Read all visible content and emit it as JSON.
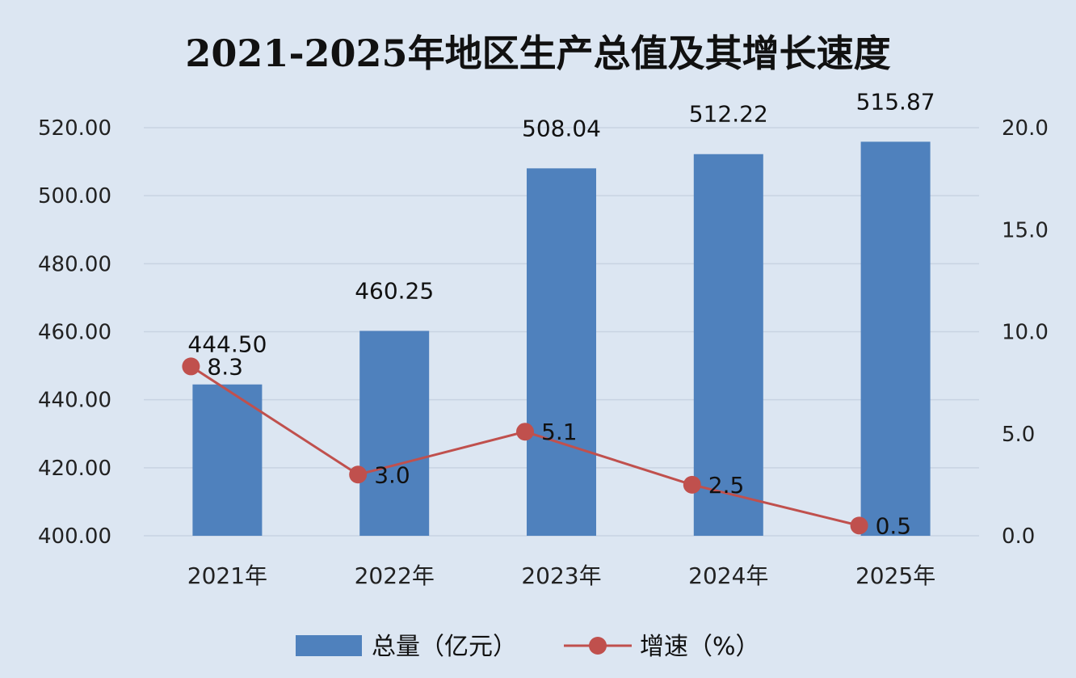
{
  "chart_data": {
    "type": "bar",
    "title": "2021-2025年地区生产总值及其增长速度",
    "categories": [
      "2021年",
      "2022年",
      "2023年",
      "2024年",
      "2025年"
    ],
    "series": [
      {
        "name": "总量（亿元）",
        "type": "bar",
        "axis": "left",
        "values": [
          444.5,
          460.25,
          508.04,
          512.22,
          515.87
        ],
        "labels": [
          "444.50",
          "460.25",
          "508.04",
          "512.22",
          "515.87"
        ],
        "color": "#4f81bd"
      },
      {
        "name": "增速（%）",
        "type": "line",
        "axis": "right",
        "values": [
          8.3,
          3.0,
          5.1,
          2.5,
          0.5
        ],
        "labels": [
          "8.3",
          "3.0",
          "5.1",
          "2.5",
          "0.5"
        ],
        "color": "#c0504d"
      }
    ],
    "y_left": {
      "min": 400,
      "max": 520,
      "ticks": [
        400,
        420,
        440,
        460,
        480,
        500,
        520
      ],
      "tick_labels": [
        "400.00",
        "420.00",
        "440.00",
        "460.00",
        "480.00",
        "500.00",
        "520.00"
      ]
    },
    "y_right": {
      "min": 0,
      "max": 20,
      "ticks": [
        0,
        5,
        10,
        15,
        20
      ],
      "tick_labels": [
        "0.0",
        "5.0",
        "10.0",
        "15.0",
        "20.0"
      ]
    },
    "grid": true,
    "legend": "bottom",
    "background": "#dce6f2"
  }
}
